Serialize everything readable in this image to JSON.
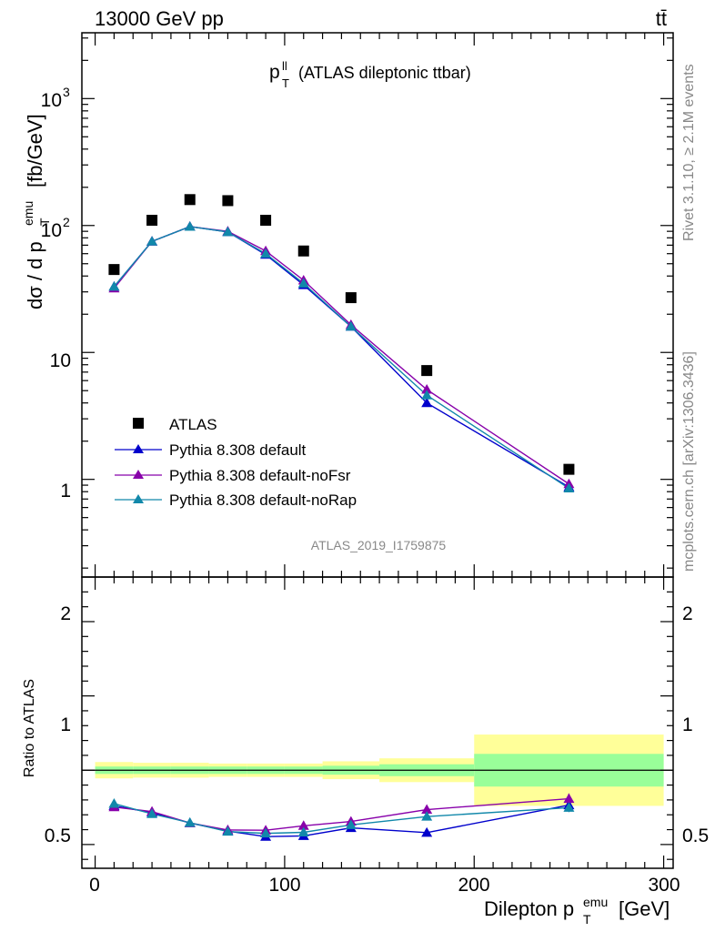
{
  "header": {
    "energy_label": "13000 GeV pp",
    "process_label": "tt̄"
  },
  "side_labels": {
    "rivet": "Rivet 3.1.10, ≥ 2.1M events",
    "mcplots": "mcplots.cern.ch [arXiv:1306.3436]"
  },
  "chart_data": [
    {
      "type": "scatter",
      "title": "(ATLAS dileptonic ttbar)",
      "title_main": "p",
      "title_sup": "ll",
      "title_sub": "T",
      "analysis_label": "ATLAS_2019_I1759875",
      "ylabel": "dσ / d p_T^emu [fb/GeV]",
      "ylabel_main": "dσ / d p",
      "ylabel_sup": "emu",
      "ylabel_sub": "T",
      "ylabel_unit": "[fb/GeV]",
      "yscale": "log",
      "ylim": [
        0.17,
        3300
      ],
      "xlim": [
        -7,
        305
      ],
      "ytick_labels": [
        "1",
        "10",
        "10",
        "10"
      ],
      "ytick_exponents": [
        "",
        "",
        "2",
        "3"
      ],
      "legend_position": "center-left",
      "legend": {
        "data": "ATLAS",
        "series": [
          "Pythia 8.308 default",
          "Pythia 8.308 default-noFsr",
          "Pythia 8.308 default-noRap"
        ]
      },
      "data": {
        "name": "ATLAS",
        "x": [
          10,
          30,
          50,
          70,
          90,
          110,
          135,
          175,
          250
        ],
        "y": [
          45,
          110,
          160,
          157,
          110,
          63,
          27,
          7.2,
          1.2
        ]
      },
      "series": [
        {
          "name": "Pythia 8.308 default",
          "color": "#0000cc",
          "x": [
            10,
            30,
            50,
            70,
            90,
            110,
            135,
            175,
            250
          ],
          "y": [
            33,
            75,
            98,
            89,
            59,
            34,
            16,
            4.0,
            0.87
          ]
        },
        {
          "name": "Pythia 8.308 default-noFsr",
          "color": "#8800aa",
          "x": [
            10,
            30,
            50,
            70,
            90,
            110,
            135,
            175,
            250
          ],
          "y": [
            32,
            75,
            98,
            90,
            63,
            37,
            16.5,
            5.1,
            0.92
          ]
        },
        {
          "name": "Pythia 8.308 default-noRap",
          "color": "#1188aa",
          "x": [
            10,
            30,
            50,
            70,
            90,
            110,
            135,
            175,
            250
          ],
          "y": [
            33,
            75,
            98,
            89,
            60,
            35,
            16,
            4.6,
            0.85
          ]
        }
      ]
    },
    {
      "type": "scatter",
      "ylabel": "Ratio to ATLAS",
      "xlabel": "Dilepton p_T^emu [GeV]",
      "xlabel_main": "Dilepton p",
      "xlabel_sup": "emu",
      "xlabel_sub": "T",
      "xlabel_unit": "[GeV]",
      "ylim": [
        0.34,
        2.3
      ],
      "xlim": [
        -7,
        305
      ],
      "yticks": [
        "0.5",
        "1",
        "2"
      ],
      "xticks": [
        "0",
        "100",
        "200",
        "300"
      ],
      "reference_line": 1.0,
      "bands": [
        {
          "x0": 0,
          "x1": 20,
          "inner": [
            0.975,
            1.025
          ],
          "outer": [
            0.945,
            1.055
          ]
        },
        {
          "x0": 20,
          "x1": 40,
          "inner": [
            0.975,
            1.025
          ],
          "outer": [
            0.95,
            1.05
          ]
        },
        {
          "x0": 40,
          "x1": 60,
          "inner": [
            0.975,
            1.025
          ],
          "outer": [
            0.95,
            1.05
          ]
        },
        {
          "x0": 60,
          "x1": 80,
          "inner": [
            0.975,
            1.025
          ],
          "outer": [
            0.955,
            1.045
          ]
        },
        {
          "x0": 80,
          "x1": 100,
          "inner": [
            0.975,
            1.025
          ],
          "outer": [
            0.955,
            1.045
          ]
        },
        {
          "x0": 100,
          "x1": 120,
          "inner": [
            0.975,
            1.025
          ],
          "outer": [
            0.955,
            1.045
          ]
        },
        {
          "x0": 120,
          "x1": 150,
          "inner": [
            0.97,
            1.03
          ],
          "outer": [
            0.94,
            1.06
          ]
        },
        {
          "x0": 150,
          "x1": 200,
          "inner": [
            0.96,
            1.04
          ],
          "outer": [
            0.92,
            1.08
          ]
        },
        {
          "x0": 200,
          "x1": 300,
          "inner": [
            0.89,
            1.11
          ],
          "outer": [
            0.76,
            1.24
          ]
        }
      ],
      "series": [
        {
          "name": "Pythia 8.308 default",
          "color": "#0000cc",
          "x": [
            10,
            30,
            50,
            70,
            90,
            110,
            135,
            175,
            250
          ],
          "y": [
            0.76,
            0.715,
            0.645,
            0.59,
            0.553,
            0.558,
            0.612,
            0.58,
            0.765
          ],
          "err": [
            0.01,
            0.01,
            0.01,
            0.01,
            0.01,
            0.015,
            0.015,
            0.025,
            0.035
          ]
        },
        {
          "name": "Pythia 8.308 default-noFsr",
          "color": "#8800aa",
          "x": [
            10,
            30,
            50,
            70,
            90,
            110,
            135,
            175,
            250
          ],
          "y": [
            0.752,
            0.722,
            0.645,
            0.598,
            0.596,
            0.626,
            0.655,
            0.735,
            0.808
          ],
          "err": [
            0.01,
            0.01,
            0.01,
            0.01,
            0.01,
            0.012,
            0.015,
            0.02,
            0.035
          ]
        },
        {
          "name": "Pythia 8.308 default-noRap",
          "color": "#1188aa",
          "x": [
            10,
            30,
            50,
            70,
            90,
            110,
            135,
            175,
            250
          ],
          "y": [
            0.775,
            0.706,
            0.647,
            0.587,
            0.575,
            0.582,
            0.632,
            0.688,
            0.748
          ],
          "err": [
            0.01,
            0.01,
            0.01,
            0.01,
            0.01,
            0.012,
            0.015,
            0.02,
            0.03
          ]
        }
      ]
    }
  ]
}
